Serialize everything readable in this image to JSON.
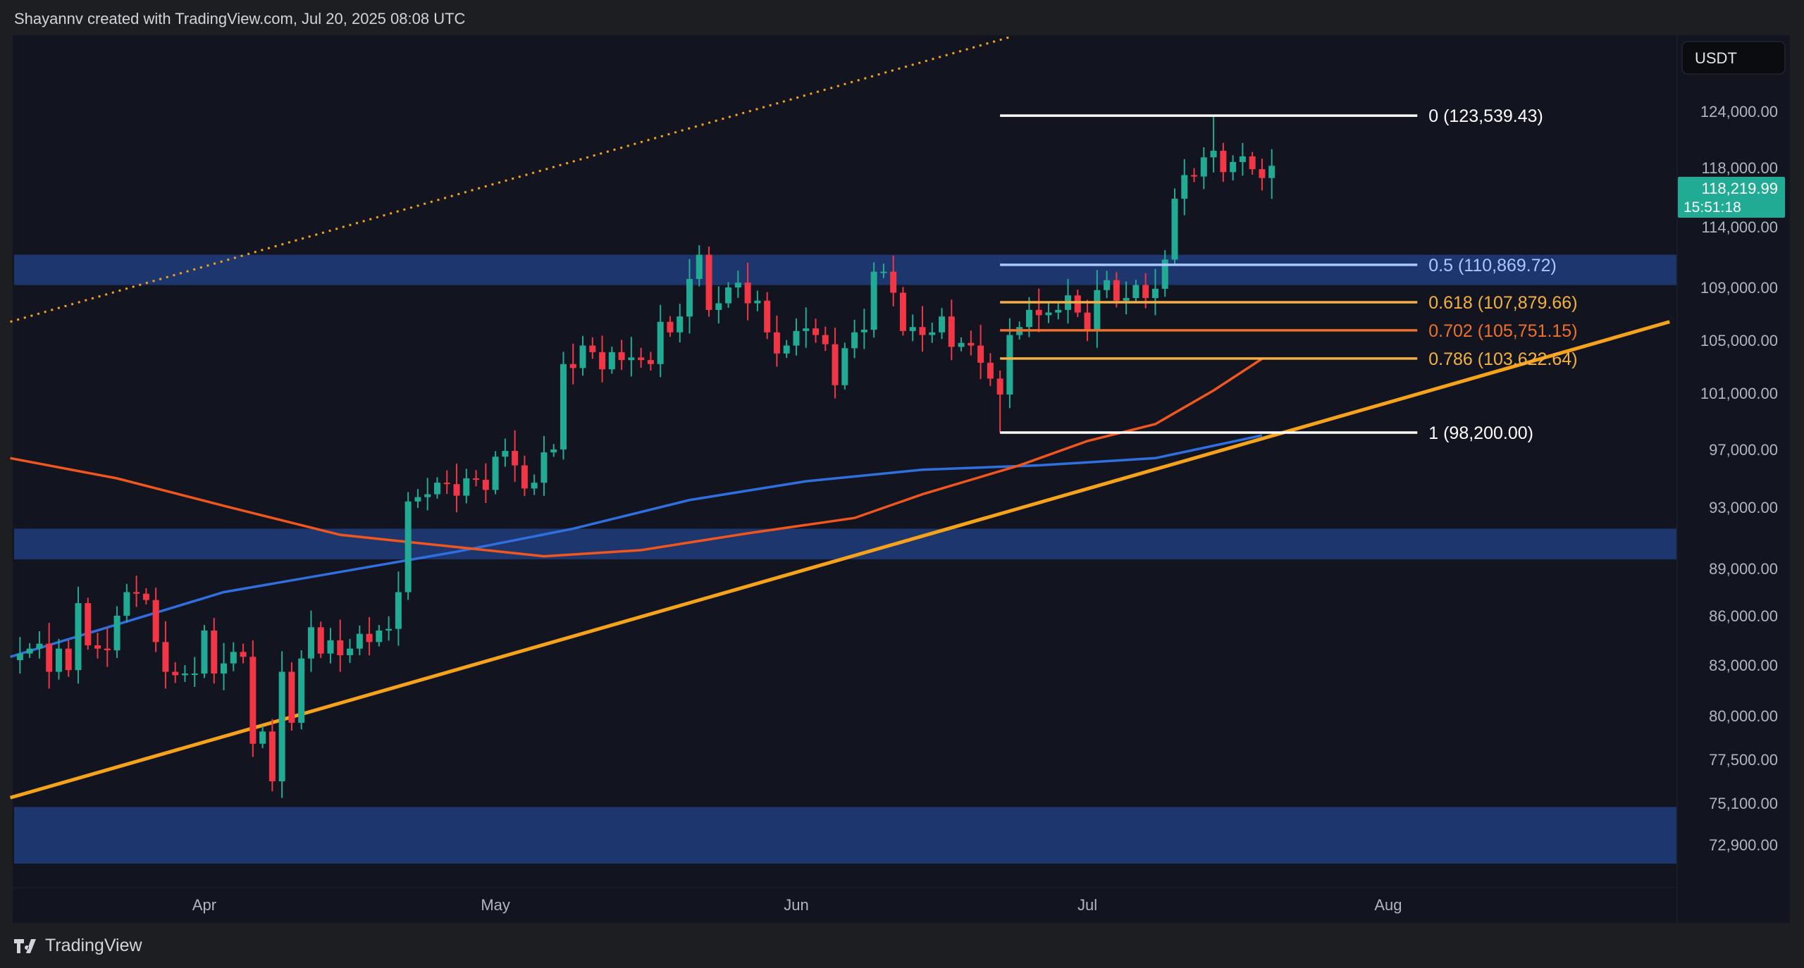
{
  "header": {
    "attribution": "Shayannv created with TradingView.com, Jul 20, 2025 08:08 UTC"
  },
  "footer": {
    "brand": "TradingView"
  },
  "currency_button": "USDT",
  "price_tag": {
    "price": "118,219.99",
    "countdown": "15:51:18",
    "color": "#22ab94"
  },
  "colors": {
    "background": "#12151f",
    "zone": "#1f3a75",
    "up": "#22ab94",
    "down": "#f23645",
    "trendline": "#f7a21b",
    "ma_blue": "#2f6fe0",
    "ma_red": "#f0561d"
  },
  "chart_data": {
    "type": "candlestick",
    "x_axis": {
      "tick_labels": [
        {
          "label": "Apr",
          "date": "2025-04-01"
        },
        {
          "label": "May",
          "date": "2025-05-01"
        },
        {
          "label": "Jun",
          "date": "2025-06-01"
        },
        {
          "label": "Jul",
          "date": "2025-07-01"
        },
        {
          "label": "Aug",
          "date": "2025-08-01"
        }
      ]
    },
    "y_axis": {
      "tick_labels": [
        "124,000.00",
        "118,000.00",
        "114,000.00",
        "109,000.00",
        "105,000.00",
        "101,000.00",
        "97,000.00",
        "93,000.00",
        "89,000.00",
        "86,000.00",
        "83,000.00",
        "80,000.00",
        "77,500.00",
        "75,100.00",
        "72,900.00"
      ],
      "tick_values": [
        124000,
        118000,
        114000,
        109000,
        105000,
        101000,
        97000,
        93000,
        89000,
        86000,
        83000,
        80000,
        77500,
        75100,
        72900
      ]
    },
    "daily_closes": [
      {
        "month": "2025-03",
        "from_day": 13,
        "close": [
          83700,
          84000,
          84300,
          82600,
          84000,
          82700,
          86800,
          84200,
          84000,
          83900,
          86000,
          87500,
          87400,
          87000,
          84400,
          82600,
          82400,
          82500,
          82500
        ]
      },
      {
        "month": "2025-04",
        "from_day": 1,
        "close": [
          85100,
          82500,
          83100,
          83800,
          83500,
          78400,
          79100,
          76300,
          82600,
          79600,
          83400,
          85300,
          83700,
          84500,
          83600,
          84000,
          84900,
          84400,
          85100,
          85200,
          87500,
          93400,
          93700,
          93900,
          94700,
          94600,
          93800,
          95000,
          94900,
          94200
        ]
      },
      {
        "month": "2025-05",
        "from_day": 1,
        "close": [
          96500,
          96900,
          95900,
          94300,
          94700,
          96800,
          97000,
          103200,
          102900,
          104600,
          104100,
          102800,
          104100,
          103500,
          103700,
          103500,
          103200,
          106400,
          105600,
          106800,
          109700,
          111700,
          107300,
          107800,
          109000,
          109400,
          107800,
          108000,
          105600,
          104000,
          104600
        ]
      },
      {
        "month": "2025-06",
        "from_day": 1,
        "close": [
          105700,
          105900,
          105400,
          104700,
          101600,
          104400,
          105600,
          105800,
          110300,
          110300,
          108600,
          105700,
          106000,
          105400,
          105600,
          106800,
          104500,
          104800,
          104600,
          103300,
          102100,
          100900,
          105400,
          106000,
          107300,
          106900,
          107100,
          107300,
          108400,
          107100
        ]
      },
      {
        "month": "2025-07",
        "from_day": 1,
        "close": [
          105700,
          108800,
          109600,
          108000,
          108200,
          109200,
          108200,
          108900,
          111300,
          115900,
          117500,
          117400,
          119100,
          119800,
          117700,
          118600,
          119200,
          117900,
          117300,
          118200
        ]
      }
    ],
    "wick_extremes": [
      {
        "date": "2025-06-22",
        "low": 98200
      },
      {
        "date": "2025-07-14",
        "high": 123539.43
      }
    ],
    "moving_averages": [
      {
        "color_key": "ma_blue",
        "points": [
          [
            "2025-03-12",
            83500
          ],
          [
            "2025-04-03",
            87500
          ],
          [
            "2025-04-27",
            90100
          ],
          [
            "2025-05-09",
            91600
          ],
          [
            "2025-05-21",
            93500
          ],
          [
            "2025-06-02",
            94800
          ],
          [
            "2025-06-14",
            95600
          ],
          [
            "2025-06-26",
            95900
          ],
          [
            "2025-07-08",
            96400
          ],
          [
            "2025-07-19",
            98000
          ]
        ]
      },
      {
        "color_key": "ma_red",
        "points": [
          [
            "2025-03-12",
            96400
          ],
          [
            "2025-03-23",
            95000
          ],
          [
            "2025-04-03",
            93100
          ],
          [
            "2025-04-15",
            91200
          ],
          [
            "2025-04-27",
            90400
          ],
          [
            "2025-05-06",
            89800
          ],
          [
            "2025-05-16",
            90200
          ],
          [
            "2025-05-27",
            91300
          ],
          [
            "2025-06-07",
            92300
          ],
          [
            "2025-06-14",
            93900
          ],
          [
            "2025-06-24",
            95900
          ],
          [
            "2025-07-01",
            97600
          ],
          [
            "2025-07-08",
            98800
          ],
          [
            "2025-07-14",
            101200
          ],
          [
            "2025-07-19",
            103600
          ]
        ]
      }
    ],
    "zones": [
      {
        "from": 109200,
        "to": 111700
      },
      {
        "from": 89600,
        "to": 91600
      },
      {
        "from": 71900,
        "to": 74900
      }
    ],
    "trendlines": [
      {
        "style": "solid",
        "from": [
          "2025-03-12",
          75400
        ],
        "to": [
          "2025-08-30",
          106400
        ]
      },
      {
        "style": "dotted",
        "from": [
          "2025-03-12",
          106400
        ],
        "to": [
          "2025-06-23",
          131900
        ]
      }
    ],
    "fibonacci": {
      "from_date": "2025-06-22",
      "to_date": "2025-08-04",
      "levels": [
        {
          "label": "0 (123,539.43)",
          "price": 123539.43,
          "color": "#ffffff"
        },
        {
          "label": "0.5 (110,869.72)",
          "price": 110869.72,
          "color": "#a9c8ff"
        },
        {
          "label": "0.618 (107,879.66)",
          "price": 107879.66,
          "color": "#f5b041"
        },
        {
          "label": "0.702 (105,751.15)",
          "price": 105751.15,
          "color": "#f0702a"
        },
        {
          "label": "0.786 (103,622.64)",
          "price": 103622.64,
          "color": "#f5b041"
        },
        {
          "label": "1 (98,200.00)",
          "price": 98200,
          "color": "#ffffff"
        }
      ]
    }
  }
}
